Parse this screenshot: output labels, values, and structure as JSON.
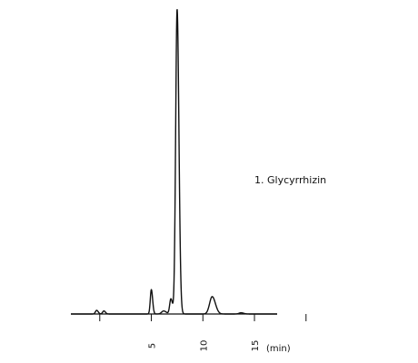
{
  "chart_data": {
    "type": "line",
    "title": "",
    "xlabel": "(min)",
    "ylabel": "",
    "xlim": [
      -2.8,
      17.2
    ],
    "ylim": [
      0,
      100
    ],
    "x_ticks": [
      0,
      5,
      10,
      15,
      20
    ],
    "x_tick_labels": [
      "",
      "5",
      "10",
      "15",
      ""
    ],
    "grid": false,
    "legend": "none",
    "annotations": [
      {
        "text": "1. Glycyrrhizin",
        "peak_x": 7.5
      }
    ],
    "series": [
      {
        "peaks": [
          {
            "x": -0.3,
            "height": 1.2,
            "width": 0.12
          },
          {
            "x": 0.4,
            "height": 1.0,
            "width": 0.12
          },
          {
            "x": 5.0,
            "height": 8.0,
            "width": 0.1
          },
          {
            "x": 6.2,
            "height": 1.0,
            "width": 0.2
          },
          {
            "x": 6.9,
            "height": 5.0,
            "width": 0.12
          },
          {
            "x": 7.5,
            "height": 100,
            "width": 0.14
          },
          {
            "x": 10.9,
            "height": 5.7,
            "width": 0.25
          },
          {
            "x": 13.7,
            "height": 0.4,
            "width": 0.2
          }
        ],
        "baseline": 0
      }
    ],
    "color": "#111111"
  }
}
